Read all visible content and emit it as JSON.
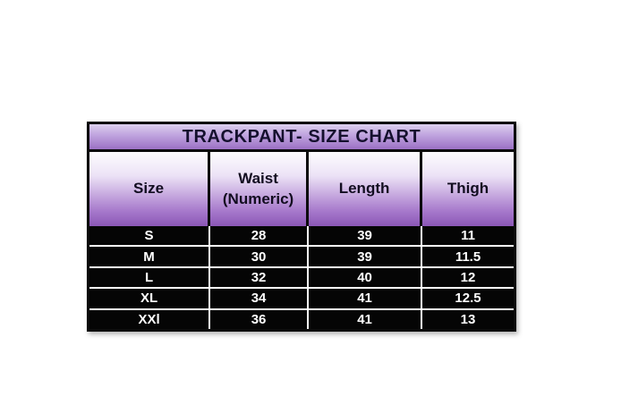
{
  "chart_data": {
    "type": "table",
    "title": "TRACKPANT- SIZE CHART",
    "columns": [
      "Size",
      "Waist\n(Numeric)",
      "Length",
      "Thigh"
    ],
    "rows": [
      [
        "S",
        "28",
        "39",
        "11"
      ],
      [
        "M",
        "30",
        "39",
        "11.5"
      ],
      [
        "L",
        "32",
        "40",
        "12"
      ],
      [
        "XL",
        "34",
        "41",
        "12.5"
      ],
      [
        "XXl",
        "36",
        "41",
        "13"
      ]
    ]
  },
  "colors": {
    "title_gradient_top": "#dcd0ee",
    "title_gradient_bottom": "#9b70c4",
    "header_gradient_top": "#fdfcfe",
    "header_gradient_bottom": "#8b57b6",
    "border": "#0b0b0b",
    "data_background": "#050505",
    "data_text": "#ffffff",
    "title_text": "#15102e"
  }
}
